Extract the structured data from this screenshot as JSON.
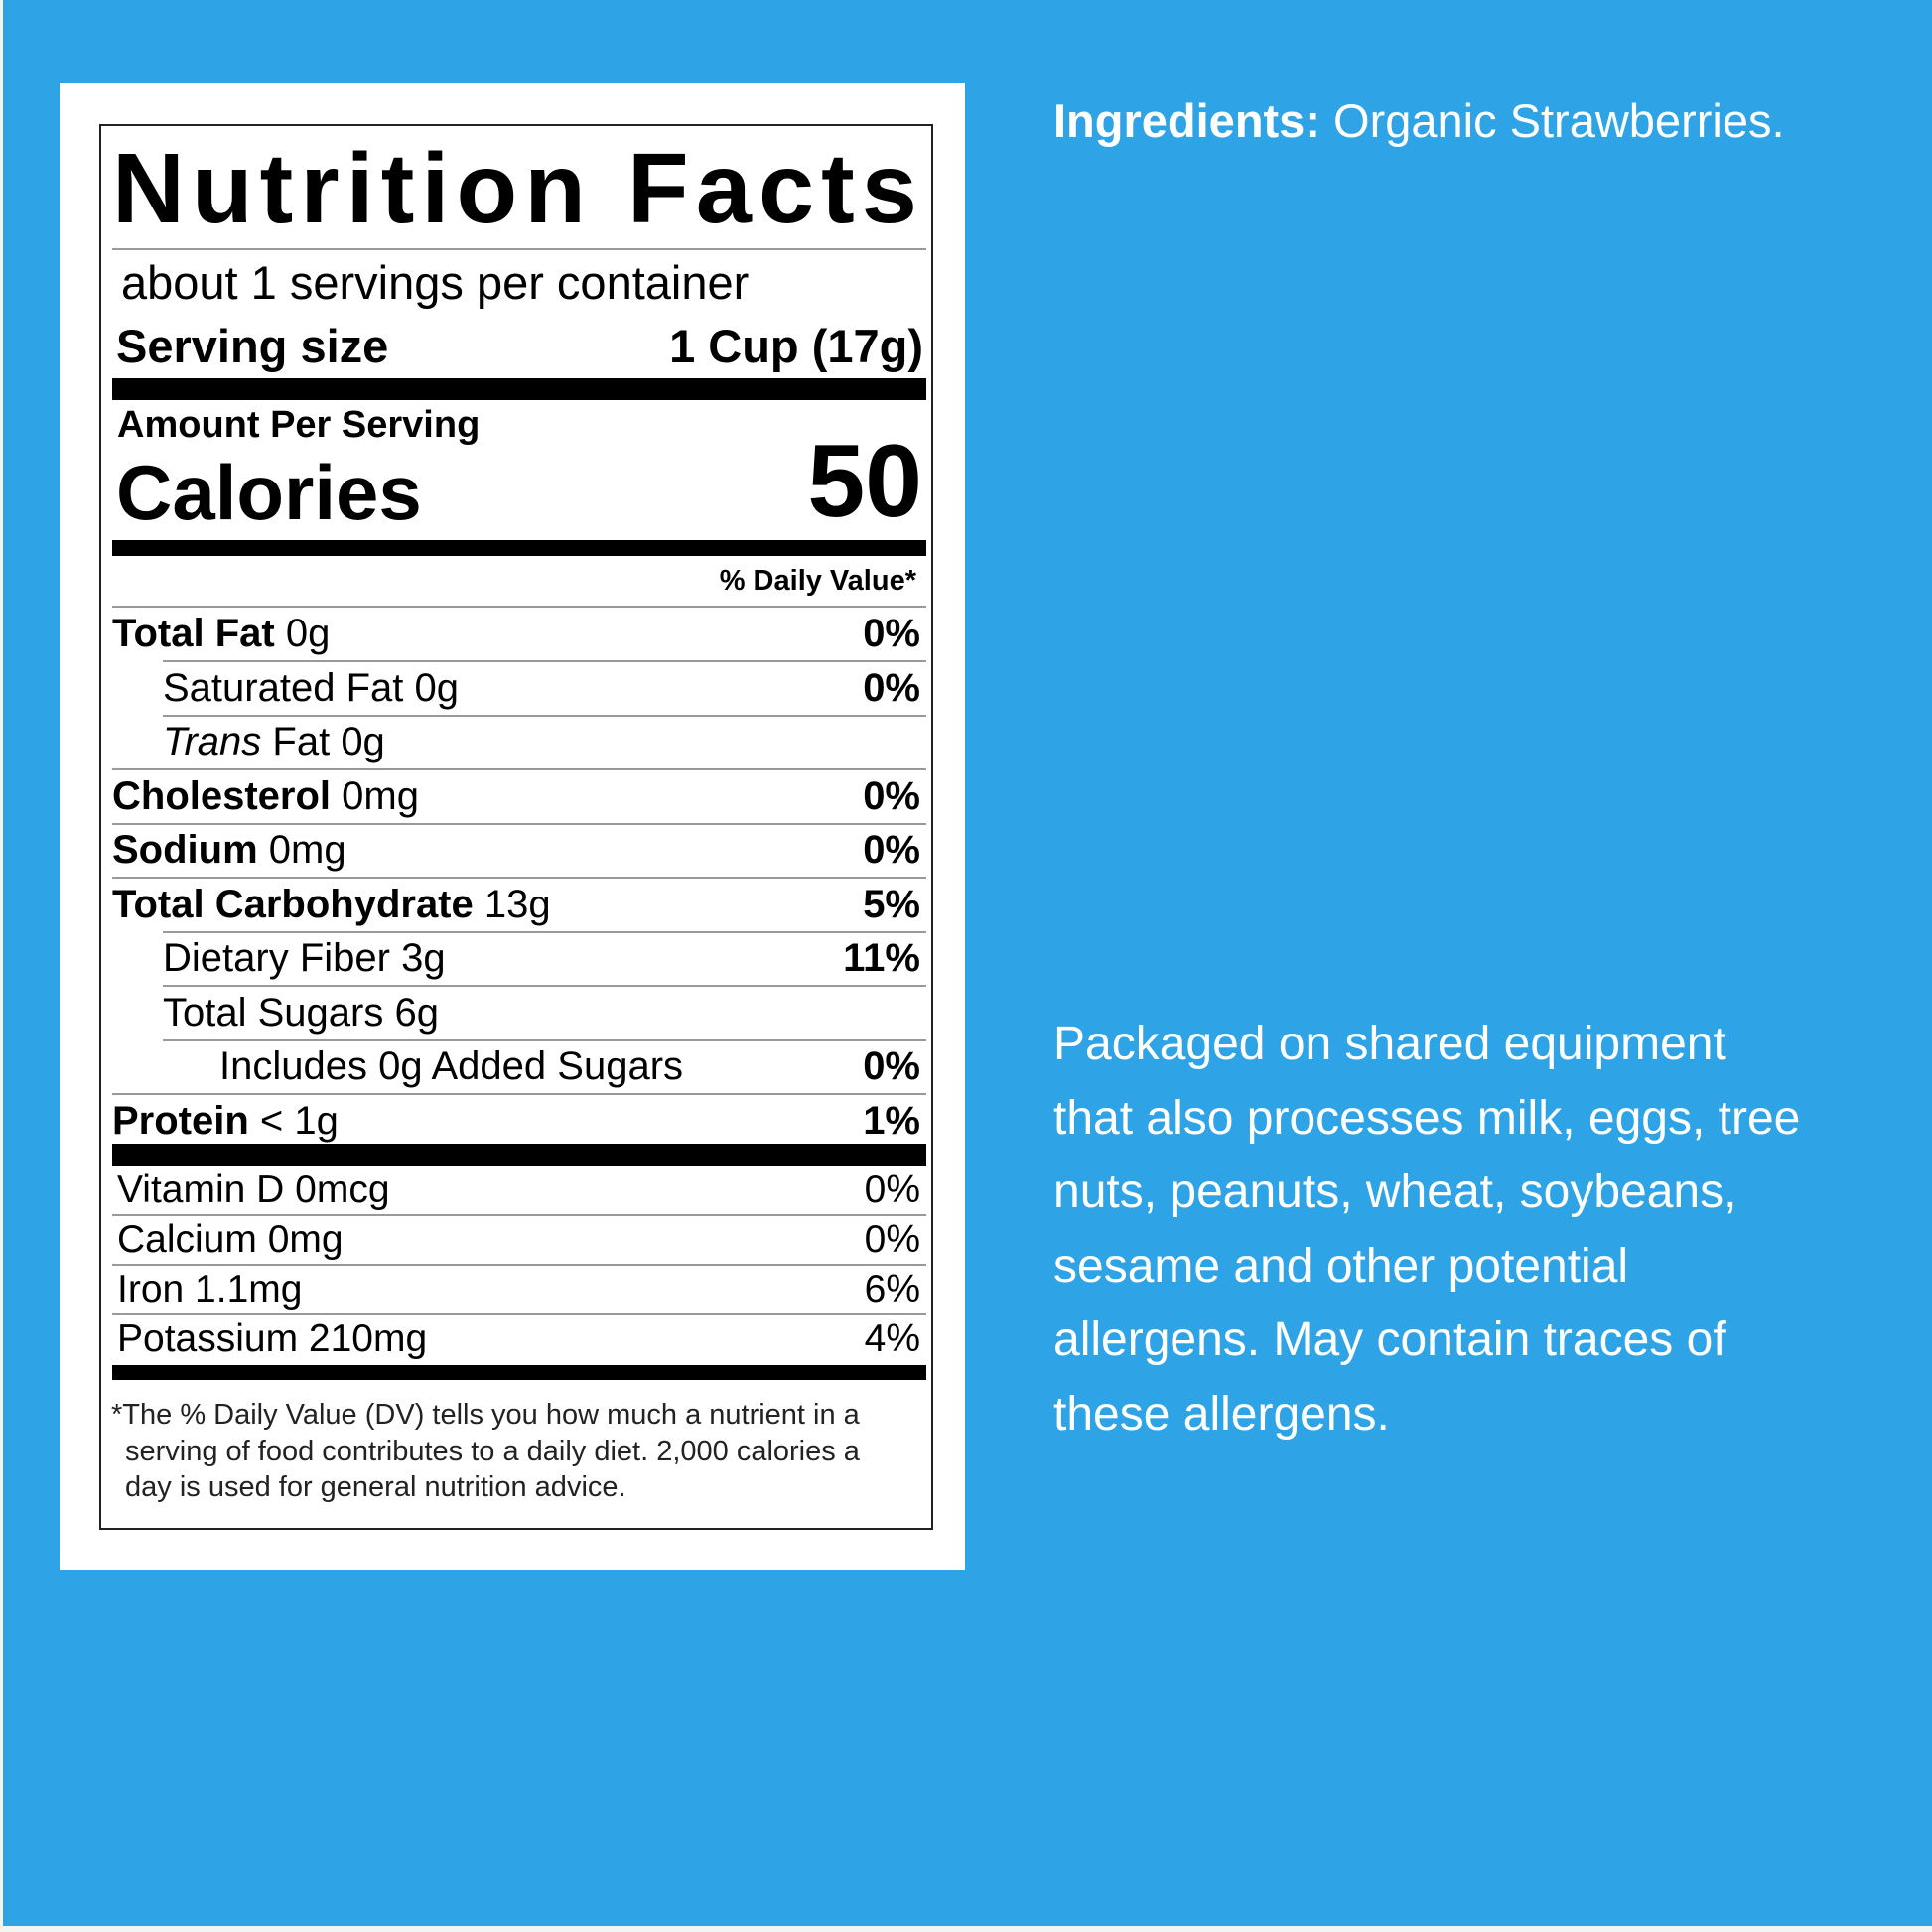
{
  "colors": {
    "background": "#2ea3e6",
    "panel": "#ffffff",
    "text_right": "#ffffff"
  },
  "label": {
    "title": "Nutrition Facts",
    "servings_per_container": "about 1 servings per container",
    "serving_size_label": "Serving size",
    "serving_size_value": "1 Cup (17g)",
    "amount_per_serving": "Amount Per Serving",
    "calories_label": "Calories",
    "calories_value": "50",
    "daily_value_header": "% Daily Value*",
    "nutrients": [
      {
        "name": "Total Fat",
        "amount": "0g",
        "dv": "0%",
        "bold": true,
        "indent": 0
      },
      {
        "name": "Saturated Fat",
        "amount": "0g",
        "dv": "0%",
        "bold": false,
        "indent": 1
      },
      {
        "name": "Trans",
        "name_suffix": " Fat",
        "amount": "0g",
        "dv": "",
        "bold": false,
        "indent": 1,
        "italic": true
      },
      {
        "name": "Cholesterol",
        "amount": "0mg",
        "dv": "0%",
        "bold": true,
        "indent": 0
      },
      {
        "name": "Sodium",
        "amount": "0mg",
        "dv": "0%",
        "bold": true,
        "indent": 0
      },
      {
        "name": "Total Carbohydrate",
        "amount": "13g",
        "dv": "5%",
        "bold": true,
        "indent": 0
      },
      {
        "name": "Dietary Fiber",
        "amount": "3g",
        "dv": "11%",
        "bold": false,
        "indent": 1
      },
      {
        "name": "Total Sugars",
        "amount": "6g",
        "dv": "",
        "bold": false,
        "indent": 1
      },
      {
        "name": "Includes 0g Added Sugars",
        "amount": "",
        "dv": "0%",
        "bold": false,
        "indent": 2
      },
      {
        "name": "Protein",
        "amount": "< 1g",
        "dv": "1%",
        "bold": true,
        "indent": 0
      }
    ],
    "vitamins": [
      {
        "name": "Vitamin D 0mcg",
        "dv": "0%"
      },
      {
        "name": "Calcium 0mg",
        "dv": "0%"
      },
      {
        "name": "Iron 1.1mg",
        "dv": "6%"
      },
      {
        "name": "Potassium 210mg",
        "dv": "4%"
      }
    ],
    "footnote": [
      "*The % Daily Value (DV) tells you how much a nutrient in a",
      "serving of food contributes to a daily diet. 2,000 calories a",
      "day is used for general nutrition advice."
    ]
  },
  "ingredients": {
    "label": "Ingredients:",
    "value": " Organic Strawberries."
  },
  "allergen_lines": [
    "Packaged on shared equipment",
    "that also processes milk, eggs, tree",
    "nuts, peanuts, wheat, soybeans,",
    "sesame and other potential",
    "allergens. May contain traces of",
    "these allergens."
  ]
}
